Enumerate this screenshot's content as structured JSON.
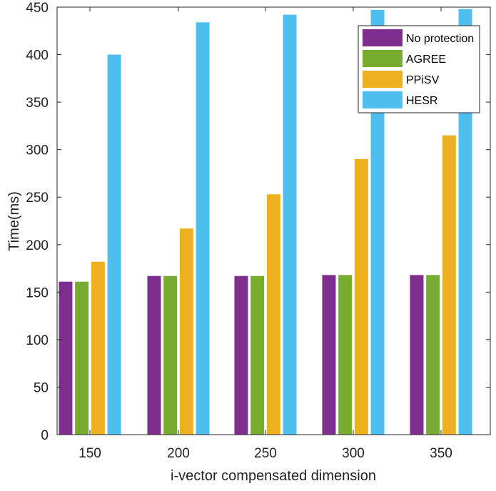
{
  "chart_data": {
    "type": "bar",
    "title": "",
    "xlabel": "i-vector compensated dimension",
    "ylabel": "Time(ms)",
    "categories": [
      "150",
      "200",
      "250",
      "300",
      "350"
    ],
    "ylim": [
      0,
      450
    ],
    "yticks": [
      0,
      50,
      100,
      150,
      200,
      250,
      300,
      350,
      400,
      450
    ],
    "grid": false,
    "legend_position": "top-right",
    "series": [
      {
        "name": "No protection",
        "color": "#7e2f8e",
        "values": [
          161,
          167,
          167,
          168,
          168
        ]
      },
      {
        "name": "AGREE",
        "color": "#77ac30",
        "values": [
          161,
          167,
          167,
          168,
          168
        ]
      },
      {
        "name": "PPiSV",
        "color": "#edb120",
        "values": [
          182,
          217,
          253,
          290,
          315
        ]
      },
      {
        "name": "HESR",
        "color": "#4dbeee",
        "values": [
          400,
          434,
          442,
          447,
          448
        ]
      }
    ]
  }
}
